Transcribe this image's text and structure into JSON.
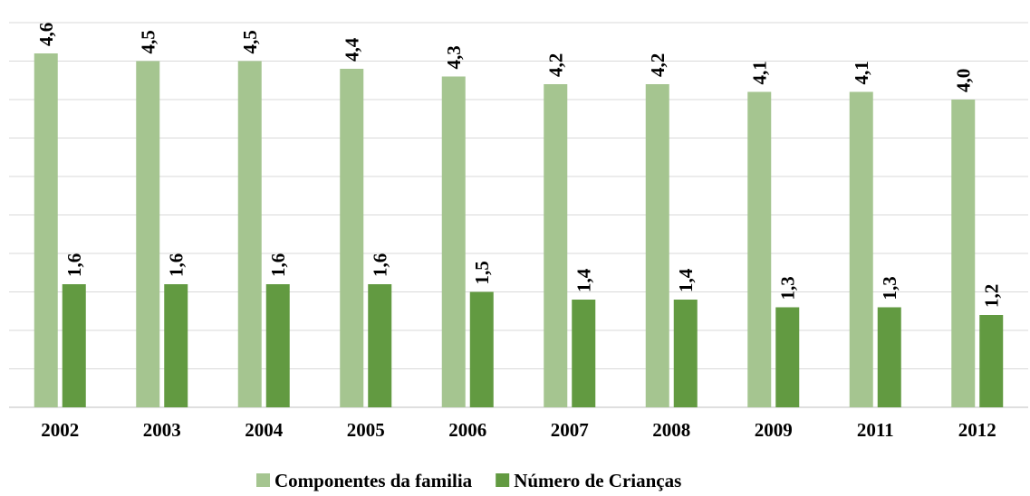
{
  "chart_data": {
    "type": "bar",
    "categories": [
      "2002",
      "2003",
      "2004",
      "2005",
      "2006",
      "2007",
      "2008",
      "2009",
      "2011",
      "2012"
    ],
    "series": [
      {
        "name": "Componentes da familia",
        "color": "#a5c590",
        "values": [
          4.6,
          4.5,
          4.5,
          4.4,
          4.3,
          4.2,
          4.2,
          4.1,
          4.1,
          4.0
        ],
        "value_labels": [
          "4,6",
          "4,5",
          "4,5",
          "4,4",
          "4,3",
          "4,2",
          "4,2",
          "4,1",
          "4,1",
          "4,0"
        ]
      },
      {
        "name": "Número de Crianças",
        "color": "#629a41",
        "values": [
          1.6,
          1.6,
          1.6,
          1.6,
          1.5,
          1.4,
          1.4,
          1.3,
          1.3,
          1.2
        ],
        "value_labels": [
          "1,6",
          "1,6",
          "1,6",
          "1,6",
          "1,5",
          "1,4",
          "1,4",
          "1,3",
          "1,3",
          "1,2"
        ]
      }
    ],
    "ylim": [
      0,
      5
    ],
    "yticks": [
      0,
      0.5,
      1,
      1.5,
      2,
      2.5,
      3,
      3.5,
      4,
      4.5,
      5
    ],
    "grid": true,
    "legend": "bottom"
  }
}
